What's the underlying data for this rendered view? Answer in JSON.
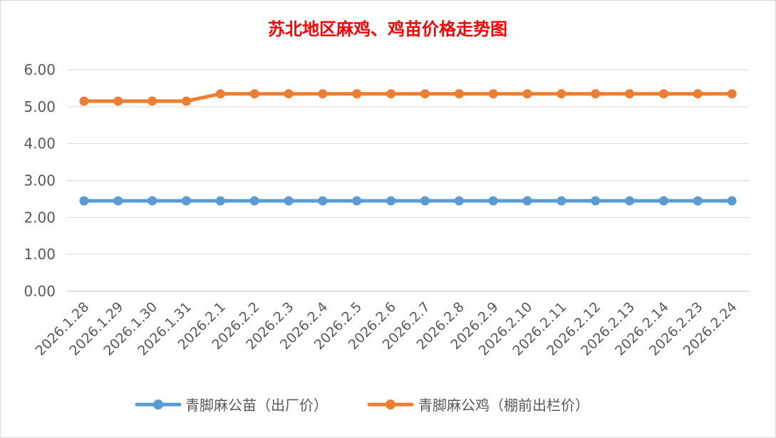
{
  "chart_data": {
    "type": "line",
    "title": "苏北地区麻鸡、鸡苗价格走势图",
    "xlabel": "",
    "ylabel": "",
    "ylim": [
      0,
      6
    ],
    "yticks": [
      "0.00",
      "1.00",
      "2.00",
      "3.00",
      "4.00",
      "5.00",
      "6.00"
    ],
    "grid": true,
    "legend_position": "bottom",
    "categories": [
      "2026.1.28",
      "2026.1.29",
      "2026.1.30",
      "2026.1.31",
      "2026.2.1",
      "2026.2.2",
      "2026.2.3",
      "2026.2.4",
      "2026.2.5",
      "2026.2.6",
      "2026.2.7",
      "2026.2.8",
      "2026.2.9",
      "2026.2.10",
      "2026.2.11",
      "2026.2.12",
      "2026.2.13",
      "2026.2.14",
      "2026.2.23",
      "2026.2.24"
    ],
    "series": [
      {
        "name": "青脚麻公苗（出厂价）",
        "color": "#5b9bd5",
        "values": [
          2.45,
          2.45,
          2.45,
          2.45,
          2.45,
          2.45,
          2.45,
          2.45,
          2.45,
          2.45,
          2.45,
          2.45,
          2.45,
          2.45,
          2.45,
          2.45,
          2.45,
          2.45,
          2.45,
          2.45
        ]
      },
      {
        "name": "青脚麻公鸡（棚前出栏价）",
        "color": "#ed7d31",
        "values": [
          5.15,
          5.15,
          5.15,
          5.15,
          5.35,
          5.35,
          5.35,
          5.35,
          5.35,
          5.35,
          5.35,
          5.35,
          5.35,
          5.35,
          5.35,
          5.35,
          5.35,
          5.35,
          5.35,
          5.35
        ]
      }
    ]
  }
}
